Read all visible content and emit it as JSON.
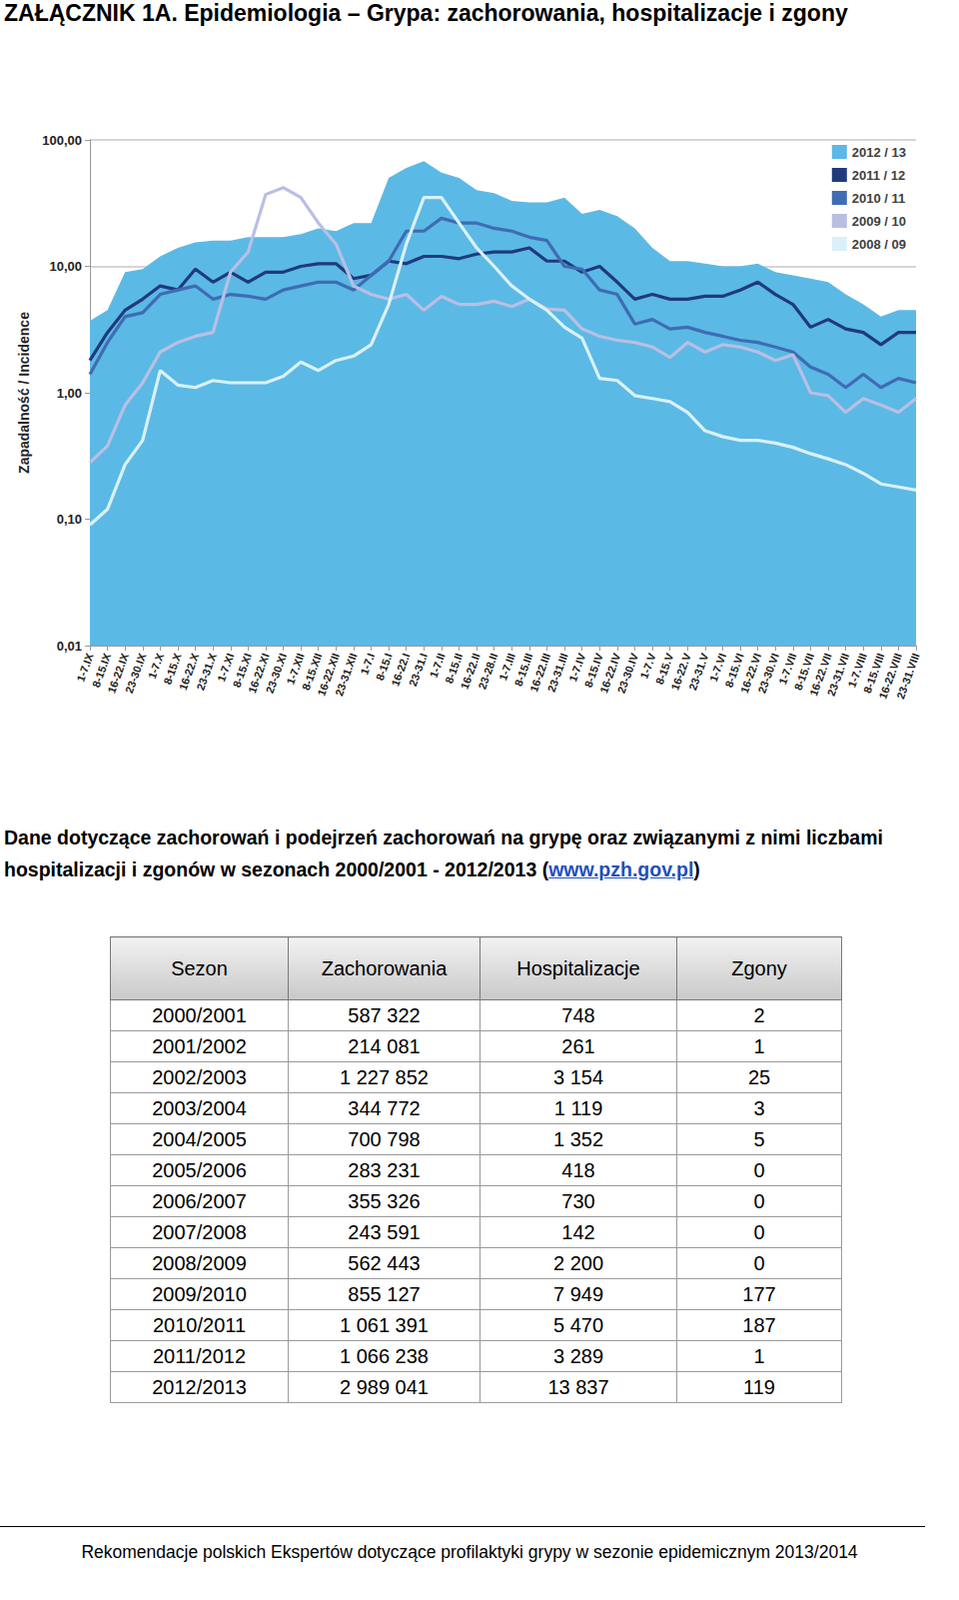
{
  "header": {
    "title": "ZAŁĄCZNIK 1A. Epidemiologia – Grypa: zachorowania, hospitalizacje i zgony"
  },
  "chart_data": {
    "type": "line",
    "y_label": "Zapadalność / Incidence",
    "log": "y",
    "grid": true,
    "legend": "top-right",
    "ylim": [
      0.01,
      100
    ],
    "yticks": [
      {
        "value": 0.01,
        "label": "0,01"
      },
      {
        "value": 0.1,
        "label": "0,10"
      },
      {
        "value": 1,
        "label": "1,00"
      },
      {
        "value": 10,
        "label": "10,00"
      },
      {
        "value": 100,
        "label": "100,00"
      }
    ],
    "categories": [
      "1-7.IX",
      "8-15.IX",
      "16-22.IX",
      "23-30.IX",
      "1-7.X",
      "8-15.X",
      "16-22.X",
      "23-31.X",
      "1-7.XI",
      "8-15.XI",
      "16-22.XI",
      "23-30.XI",
      "1-7.XII",
      "8-15.XII",
      "16-22.XII",
      "23-31.XII",
      "1-7.I",
      "8-15.I",
      "16-22.I",
      "23-31.I",
      "1-7.II",
      "8-15.II",
      "16-22.II",
      "23-28.II",
      "1-7.III",
      "8-15.III",
      "16-22.III",
      "23-31.III",
      "1-7.IV",
      "8-15.IV",
      "16-22.IV",
      "23-30.IV",
      "1-7.V",
      "8-15.V",
      "16-22.V",
      "23-31.V",
      "1-7.VI",
      "8-15.VI",
      "16-22.VI",
      "23-30.VI",
      "1-7.VII",
      "8-15.VII",
      "16-22.VII",
      "23-31.VII",
      "1-7.VIII",
      "8-15.VIII",
      "16-22.VIII",
      "23-31.VIII"
    ],
    "series": [
      {
        "name": "2012 / 13",
        "type": "area",
        "color": "#5bb9e5",
        "values": [
          3.7,
          4.5,
          9,
          9.5,
          12,
          14,
          15.5,
          16,
          16,
          17,
          17,
          17,
          18,
          20,
          19,
          22,
          22,
          50,
          60,
          68,
          55,
          50,
          40,
          38,
          33,
          32,
          32,
          35,
          26,
          28,
          25,
          20,
          14,
          11,
          11,
          10.5,
          10,
          10,
          10.5,
          9,
          8.5,
          8,
          7.5,
          6,
          5,
          4,
          4.5,
          4.5
        ]
      },
      {
        "name": "2011 / 12",
        "type": "line",
        "color": "#203a7c",
        "values": [
          1.8,
          3,
          4.5,
          5.5,
          7,
          6.5,
          9.5,
          7.5,
          9,
          7.5,
          9,
          9,
          10,
          10.5,
          10.5,
          8,
          8.5,
          11,
          10.5,
          12,
          12,
          11.5,
          12.5,
          13,
          13,
          14,
          11,
          11,
          9,
          10,
          7.5,
          5.5,
          6,
          5.5,
          5.5,
          5.8,
          5.8,
          6.5,
          7.5,
          6,
          5,
          3.3,
          3.8,
          3.2,
          3,
          2.4,
          3,
          3
        ]
      },
      {
        "name": "2010 / 11",
        "type": "line",
        "color": "#3f6cb3",
        "values": [
          1.4,
          2.5,
          4,
          4.3,
          6,
          6.5,
          7,
          5.5,
          6,
          5.8,
          5.5,
          6.5,
          7,
          7.5,
          7.5,
          6.5,
          8.5,
          11,
          19,
          19,
          24,
          22,
          22,
          20,
          19,
          17,
          16,
          10,
          9.5,
          6.5,
          6,
          3.5,
          3.8,
          3.2,
          3.3,
          3,
          2.8,
          2.6,
          2.5,
          2.3,
          2.1,
          1.6,
          1.4,
          1.1,
          1.4,
          1.1,
          1.3,
          1.2
        ]
      },
      {
        "name": "2009 / 10",
        "type": "line",
        "color": "#b9bfe3",
        "values": [
          0.28,
          0.38,
          0.8,
          1.2,
          2.1,
          2.5,
          2.8,
          3,
          9,
          13,
          37,
          42,
          35,
          22,
          15,
          7,
          6,
          5.5,
          6,
          4.5,
          5.8,
          5,
          5,
          5.3,
          4.8,
          5.5,
          4.6,
          4.5,
          3.2,
          2.8,
          2.6,
          2.5,
          2.3,
          1.9,
          2.5,
          2.1,
          2.4,
          2.3,
          2.1,
          1.8,
          2,
          1.0,
          0.95,
          0.7,
          0.9,
          0.8,
          0.7,
          0.9
        ]
      },
      {
        "name": "2008 / 09",
        "type": "line",
        "color": "#d9f1f8",
        "values": [
          0.09,
          0.12,
          0.27,
          0.42,
          1.5,
          1.15,
          1.1,
          1.25,
          1.2,
          1.2,
          1.2,
          1.35,
          1.75,
          1.5,
          1.8,
          1.95,
          2.4,
          5,
          15,
          35,
          35,
          22,
          14,
          10,
          7,
          5.5,
          4.5,
          3.3,
          2.7,
          1.3,
          1.25,
          0.95,
          0.9,
          0.85,
          0.7,
          0.5,
          0.45,
          0.42,
          0.42,
          0.4,
          0.37,
          0.33,
          0.3,
          0.27,
          0.23,
          0.19,
          0.18,
          0.17
        ]
      }
    ]
  },
  "caption": {
    "text_before": "Dane dotyczące zachorowań i podejrzeń zachorowań na grypę oraz związanymi z nimi liczbami hospitalizacji i zgonów w sezonach 2000/2001 - 2012/2013 (",
    "link": "www.pzh.gov.pl",
    "text_after": ")"
  },
  "table": {
    "columns": [
      "Sezon",
      "Zachorowania",
      "Hospitalizacje",
      "Zgony"
    ],
    "rows": [
      [
        "2000/2001",
        "587 322",
        "748",
        "2"
      ],
      [
        "2001/2002",
        "214 081",
        "261",
        "1"
      ],
      [
        "2002/2003",
        "1 227 852",
        "3 154",
        "25"
      ],
      [
        "2003/2004",
        "344 772",
        "1 119",
        "3"
      ],
      [
        "2004/2005",
        "700 798",
        "1 352",
        "5"
      ],
      [
        "2005/2006",
        "283 231",
        "418",
        "0"
      ],
      [
        "2006/2007",
        "355 326",
        "730",
        "0"
      ],
      [
        "2007/2008",
        "243 591",
        "142",
        "0"
      ],
      [
        "2008/2009",
        "562 443",
        "2 200",
        "0"
      ],
      [
        "2009/2010",
        "855 127",
        "7 949",
        "177"
      ],
      [
        "2010/2011",
        "1 061 391",
        "5 470",
        "187"
      ],
      [
        "2011/2012",
        "1 066 238",
        "3 289",
        "1"
      ],
      [
        "2012/2013",
        "2 989 041",
        "13 837",
        "119"
      ]
    ]
  },
  "footer": {
    "text": "Rekomendacje polskich Ekspertów dotyczące profilaktyki grypy w sezonie epidemicznym 2013/2014"
  }
}
